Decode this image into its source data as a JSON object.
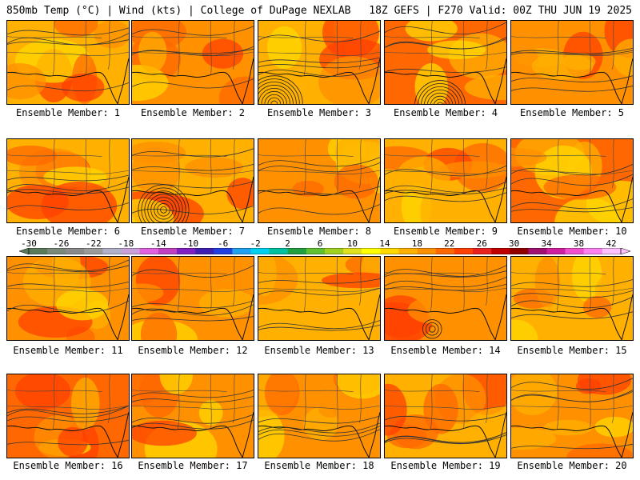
{
  "header": {
    "left_title": "850mb Temp (°C) | Wind (kts) | College of DuPage NEXLAB",
    "right_title": "18Z GEFS | F270 Valid: 00Z THU JUN 19 2025"
  },
  "colorbar": {
    "ticks": [
      "-30",
      "-26",
      "-22",
      "-18",
      "-14",
      "-10",
      "-6",
      "-2",
      "2",
      "6",
      "10",
      "14",
      "18",
      "22",
      "26",
      "30",
      "34",
      "38",
      "42"
    ],
    "colors": [
      "#5a7a5a",
      "#7a8a7a",
      "#8a8a8a",
      "#9a9a9a",
      "#b0b0c8",
      "#c8a0d8",
      "#e060e0",
      "#c040c0",
      "#8020c0",
      "#4020b0",
      "#2040e0",
      "#20a0f0",
      "#00d0f0",
      "#00c0a0",
      "#20a040",
      "#60c030",
      "#a0d020",
      "#e0e020",
      "#ffff00",
      "#ffd800",
      "#ffb000",
      "#ff9000",
      "#ff6800",
      "#ff4000",
      "#e82020",
      "#c00000",
      "#900000",
      "#a01070",
      "#d020a0",
      "#f050d0",
      "#ff80f0",
      "#ffc0ff"
    ]
  },
  "colors": {
    "orange_light": "#ffb000",
    "orange": "#ff9000",
    "orange_dark": "#ff6800",
    "red_orange": "#ff4000",
    "yellow": "#ffd800"
  },
  "panels": [
    {
      "label": "Ensemble Member: 1"
    },
    {
      "label": "Ensemble Member: 2"
    },
    {
      "label": "Ensemble Member: 3"
    },
    {
      "label": "Ensemble Member: 4"
    },
    {
      "label": "Ensemble Member: 5"
    },
    {
      "label": "Ensemble Member: 6"
    },
    {
      "label": "Ensemble Member: 7"
    },
    {
      "label": "Ensemble Member: 8"
    },
    {
      "label": "Ensemble Member: 9"
    },
    {
      "label": "Ensemble Member: 10"
    },
    {
      "label": "Ensemble Member: 11"
    },
    {
      "label": "Ensemble Member: 12"
    },
    {
      "label": "Ensemble Member: 13"
    },
    {
      "label": "Ensemble Member: 14"
    },
    {
      "label": "Ensemble Member: 15"
    },
    {
      "label": "Ensemble Member: 16"
    },
    {
      "label": "Ensemble Member: 17"
    },
    {
      "label": "Ensemble Member: 18"
    },
    {
      "label": "Ensemble Member: 19"
    },
    {
      "label": "Ensemble Member: 20"
    }
  ]
}
